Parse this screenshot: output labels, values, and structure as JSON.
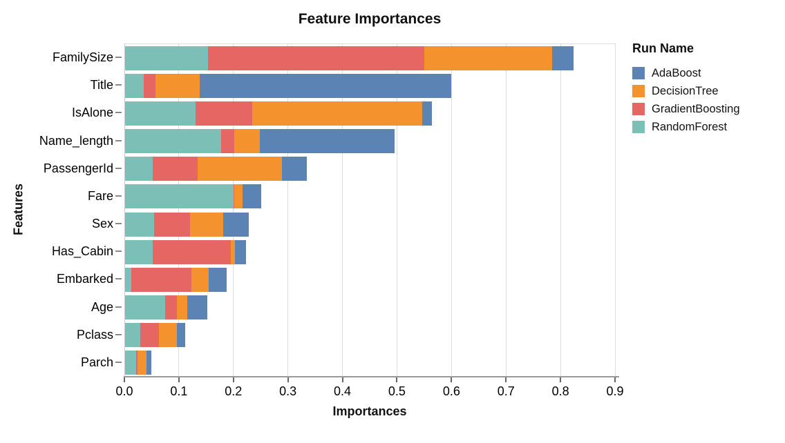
{
  "chart_data": {
    "type": "bar",
    "stacked": true,
    "orientation": "horizontal",
    "title": "Feature Importances",
    "xlabel": "Importances",
    "ylabel": "Features",
    "legend_title": "Run Name",
    "legend_position": "right",
    "grid": true,
    "xlim": [
      0.0,
      0.9
    ],
    "xticks": [
      {
        "value": 0.0,
        "label": "0.0"
      },
      {
        "value": 0.1,
        "label": "0.1"
      },
      {
        "value": 0.2,
        "label": "0.2"
      },
      {
        "value": 0.3,
        "label": "0.3"
      },
      {
        "value": 0.4,
        "label": "0.4"
      },
      {
        "value": 0.5,
        "label": "0.5"
      },
      {
        "value": 0.6,
        "label": "0.6"
      },
      {
        "value": 0.7,
        "label": "0.7"
      },
      {
        "value": 0.8,
        "label": "0.8"
      },
      {
        "value": 0.9,
        "label": "0.9"
      }
    ],
    "categories": [
      "FamilySize",
      "Title",
      "IsAlone",
      "Name_length",
      "PassengerId",
      "Fare",
      "Sex",
      "Has_Cabin",
      "Embarked",
      "Age",
      "Pclass",
      "Parch"
    ],
    "series": [
      {
        "name": "RandomForest",
        "color": "#7bbfb6",
        "values": [
          0.154,
          0.035,
          0.131,
          0.178,
          0.052,
          0.2,
          0.055,
          0.052,
          0.013,
          0.075,
          0.029,
          0.022
        ]
      },
      {
        "name": "GradientBoosting",
        "color": "#e56662",
        "values": [
          0.396,
          0.022,
          0.103,
          0.024,
          0.082,
          0.002,
          0.065,
          0.143,
          0.11,
          0.021,
          0.035,
          0.002
        ]
      },
      {
        "name": "DecisionTree",
        "color": "#f4922d",
        "values": [
          0.235,
          0.081,
          0.312,
          0.046,
          0.155,
          0.015,
          0.061,
          0.008,
          0.032,
          0.02,
          0.032,
          0.017
        ]
      },
      {
        "name": "AdaBoost",
        "color": "#5b83b4",
        "values": [
          0.039,
          0.462,
          0.018,
          0.248,
          0.046,
          0.034,
          0.047,
          0.02,
          0.033,
          0.036,
          0.015,
          0.009
        ]
      }
    ],
    "legend_entries": [
      "AdaBoost",
      "DecisionTree",
      "GradientBoosting",
      "RandomForest"
    ],
    "colors": {
      "AdaBoost": "#5b83b4",
      "DecisionTree": "#f4922d",
      "GradientBoosting": "#e56662",
      "RandomForest": "#7bbfb6"
    },
    "axis_colors": {
      "gridline": "#dddddd",
      "domain": "#999999",
      "tick": "#666666"
    }
  }
}
